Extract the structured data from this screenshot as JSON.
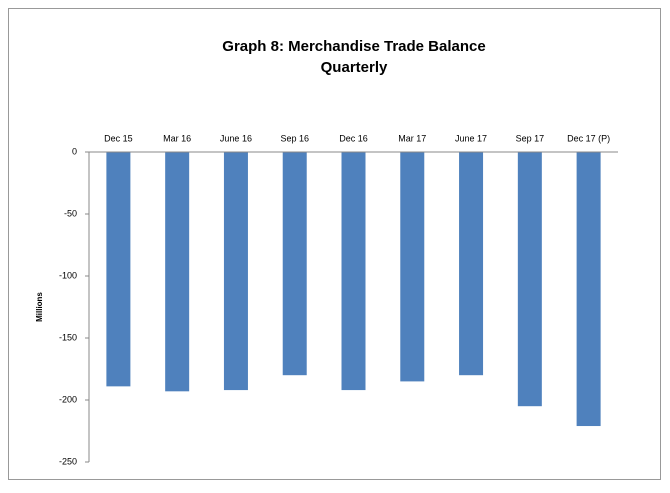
{
  "chart_data": {
    "type": "bar",
    "title": "Graph 8: Merchandise Trade Balance",
    "subtitle": "Quarterly",
    "y_label": "Millions",
    "categories": [
      "Dec 15",
      "Mar 16",
      "June 16",
      "Sep 16",
      "Dec 16",
      "Mar 17",
      "June 17",
      "Sep 17",
      "Dec 17 (P)"
    ],
    "values": [
      -189,
      -193,
      -192,
      -180,
      -192,
      -185,
      -180,
      -205,
      -221
    ],
    "color": "#4f81bd",
    "ylim": [
      -250,
      0
    ],
    "yticks": [
      0,
      -50,
      -100,
      -150,
      -200,
      -250
    ],
    "grid": false
  }
}
